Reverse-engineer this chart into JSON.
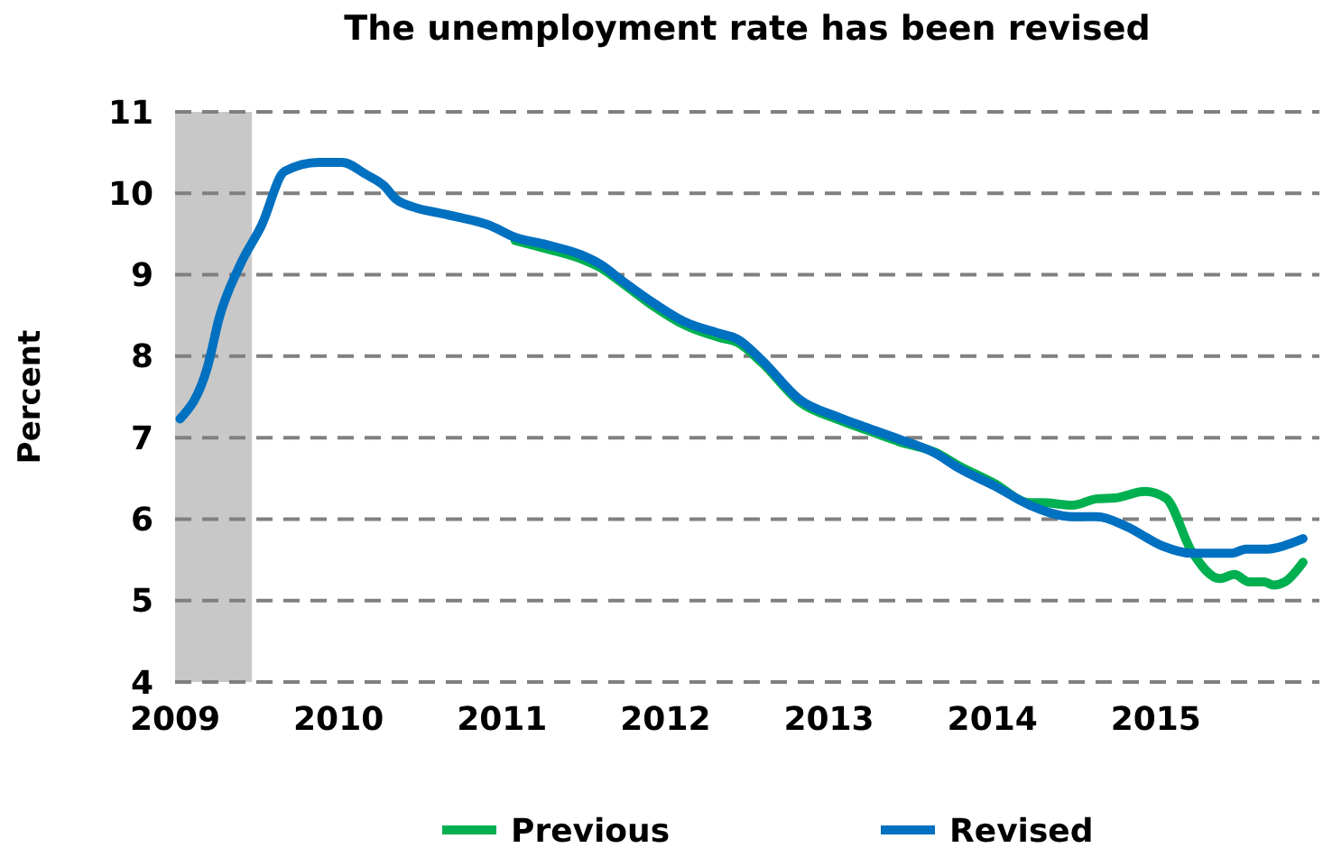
{
  "chart_data": {
    "type": "line",
    "title": "The unemployment rate has been revised",
    "ylabel": "Percent",
    "xlim": [
      2009,
      2016
    ],
    "xticks": [
      2009,
      2010,
      2011,
      2012,
      2013,
      2014,
      2015
    ],
    "ylim": [
      4,
      11
    ],
    "yticks": [
      4,
      5,
      6,
      7,
      8,
      9,
      10,
      11
    ],
    "grid": "y",
    "legend": "bottom",
    "marker": "none",
    "line_style": "solid",
    "bands": [
      {
        "axis": "x",
        "from": 2009,
        "to": 2009.47,
        "color": "#c8c8c8"
      }
    ],
    "series": [
      {
        "name": "Previous",
        "color": "#00b050",
        "x": [
          2011.08,
          2011.27,
          2011.49,
          2011.6,
          2011.74,
          2011.93,
          2012.11,
          2012.33,
          2012.44,
          2012.59,
          2012.82,
          2013.06,
          2013.25,
          2013.43,
          2013.65,
          2013.79,
          2014.01,
          2014.23,
          2014.31,
          2014.49,
          2014.64,
          2014.75,
          2014.93,
          2015.06,
          2015.22,
          2015.39,
          2015.48,
          2015.57,
          2015.66,
          2015.72,
          2015.79,
          2015.9
        ],
        "values": [
          9.42,
          9.32,
          9.19,
          9.09,
          8.89,
          8.61,
          8.39,
          8.23,
          8.17,
          7.92,
          7.44,
          7.22,
          7.08,
          6.95,
          6.82,
          6.66,
          6.44,
          6.2,
          6.2,
          6.17,
          6.25,
          6.26,
          6.34,
          6.26,
          5.6,
          5.27,
          5.32,
          5.23,
          5.23,
          5.19,
          5.23,
          5.47
        ]
      },
      {
        "name": "Revised",
        "color": "#0070c0",
        "x": [
          2009.03,
          2009.2,
          2009.27,
          2009.4,
          2009.53,
          2009.67,
          2009.88,
          2010.02,
          2010.17,
          2010.28,
          2010.35,
          2010.46,
          2010.61,
          2010.75,
          2010.92,
          2011.08,
          2011.27,
          2011.49,
          2011.6,
          2011.74,
          2011.93,
          2012.11,
          2012.33,
          2012.44,
          2012.59,
          2012.82,
          2013.06,
          2013.25,
          2013.43,
          2013.65,
          2013.79,
          2014.01,
          2014.23,
          2014.49,
          2014.64,
          2014.82,
          2015.04,
          2015.22,
          2015.46,
          2015.55,
          2015.66,
          2015.9
        ],
        "values": [
          7.23,
          7.88,
          8.47,
          9.13,
          9.61,
          10.27,
          10.38,
          10.38,
          10.23,
          10.09,
          9.93,
          9.83,
          9.76,
          9.7,
          9.61,
          9.46,
          9.37,
          9.24,
          9.13,
          8.92,
          8.65,
          8.43,
          8.28,
          8.21,
          7.95,
          7.47,
          7.25,
          7.11,
          6.98,
          6.81,
          6.63,
          6.41,
          6.17,
          6.03,
          6.03,
          5.91,
          5.67,
          5.58,
          5.58,
          5.63,
          5.63,
          5.76
        ]
      }
    ]
  }
}
